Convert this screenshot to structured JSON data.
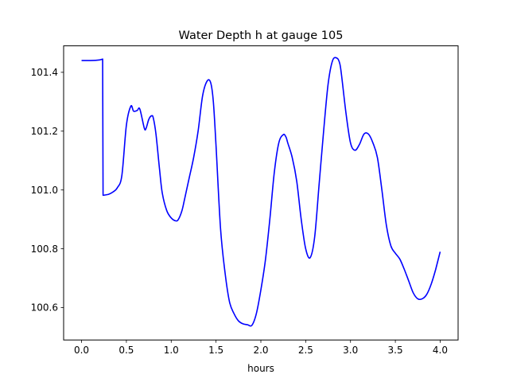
{
  "chart_data": {
    "type": "line",
    "title": "Water Depth h at gauge 105",
    "xlabel": "hours",
    "ylabel": "",
    "xlim": [
      -0.2,
      4.2
    ],
    "ylim": [
      100.49,
      101.49
    ],
    "xticks": [
      0.0,
      0.5,
      1.0,
      1.5,
      2.0,
      2.5,
      3.0,
      3.5,
      4.0
    ],
    "xtick_labels": [
      "0.0",
      "0.5",
      "1.0",
      "1.5",
      "2.0",
      "2.5",
      "3.0",
      "3.5",
      "4.0"
    ],
    "yticks": [
      100.6,
      100.8,
      101.0,
      101.2,
      101.4
    ],
    "ytick_labels": [
      "100.6",
      "100.8",
      "101.0",
      "101.2",
      "101.4"
    ],
    "grid": false,
    "legend": "none",
    "series": [
      {
        "color": "#0000ff",
        "x": [
          0.0,
          0.1,
          0.2,
          0.235,
          0.24,
          0.245,
          0.3,
          0.35,
          0.4,
          0.45,
          0.5,
          0.55,
          0.58,
          0.62,
          0.65,
          0.7,
          0.72,
          0.75,
          0.78,
          0.8,
          0.83,
          0.87,
          0.9,
          0.95,
          1.0,
          1.05,
          1.08,
          1.12,
          1.15,
          1.2,
          1.25,
          1.3,
          1.35,
          1.4,
          1.44,
          1.47,
          1.5,
          1.55,
          1.6,
          1.65,
          1.7,
          1.75,
          1.8,
          1.85,
          1.9,
          1.95,
          2.0,
          2.05,
          2.1,
          2.15,
          2.2,
          2.25,
          2.28,
          2.3,
          2.35,
          2.4,
          2.45,
          2.5,
          2.55,
          2.6,
          2.65,
          2.7,
          2.75,
          2.8,
          2.85,
          2.88,
          2.9,
          2.95,
          3.0,
          3.05,
          3.1,
          3.15,
          3.2,
          3.25,
          3.3,
          3.35,
          3.4,
          3.45,
          3.5,
          3.55,
          3.6,
          3.65,
          3.7,
          3.75,
          3.8,
          3.85,
          3.9,
          3.95,
          4.0
        ],
        "y": [
          101.44,
          101.44,
          101.442,
          101.445,
          100.982,
          100.982,
          100.985,
          100.993,
          101.008,
          101.05,
          101.22,
          101.285,
          101.268,
          101.27,
          101.275,
          101.21,
          101.21,
          101.24,
          101.252,
          101.245,
          101.19,
          101.07,
          100.99,
          100.93,
          100.905,
          100.895,
          100.9,
          100.93,
          100.97,
          101.04,
          101.11,
          101.2,
          101.32,
          101.37,
          101.365,
          101.3,
          101.15,
          100.87,
          100.72,
          100.62,
          100.58,
          100.555,
          100.545,
          100.542,
          100.54,
          100.58,
          100.66,
          100.76,
          100.9,
          101.06,
          101.16,
          101.188,
          101.18,
          101.16,
          101.11,
          101.03,
          100.9,
          100.8,
          100.77,
          100.84,
          101.02,
          101.2,
          101.36,
          101.44,
          101.448,
          101.43,
          101.39,
          101.26,
          101.16,
          101.135,
          101.155,
          101.19,
          101.19,
          101.16,
          101.11,
          101.0,
          100.88,
          100.81,
          100.785,
          100.765,
          100.73,
          100.69,
          100.65,
          100.63,
          100.63,
          100.645,
          100.68,
          100.73,
          100.79
        ]
      }
    ]
  }
}
